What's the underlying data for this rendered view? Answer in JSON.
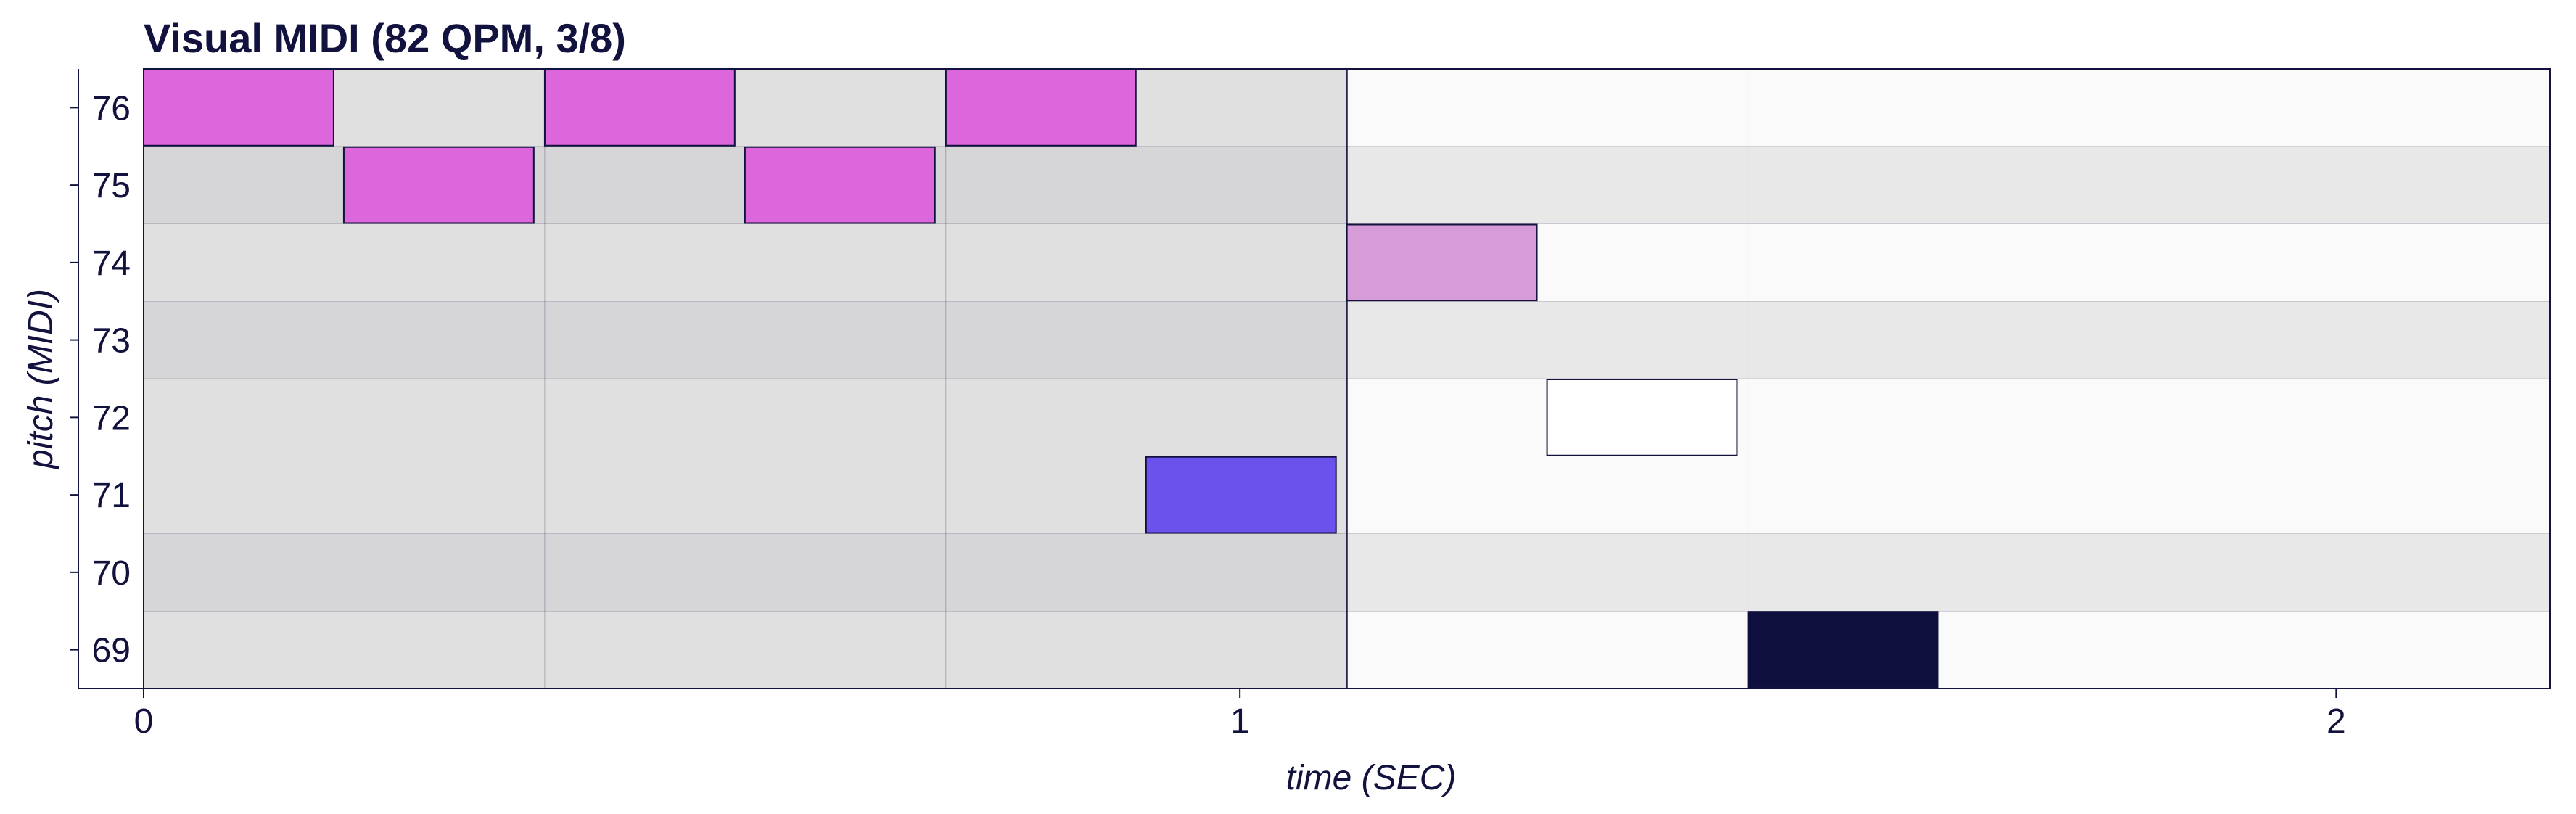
{
  "chart_data": {
    "type": "piano-roll",
    "title": "Visual MIDI (82 QPM, 3/8)",
    "xlabel": "time (SEC)",
    "ylabel": "pitch (MIDI)",
    "xlim": [
      0,
      2.195
    ],
    "ylim": [
      69,
      76
    ],
    "x_ticks": [
      "0",
      "1",
      "2"
    ],
    "y_ticks": [
      "69",
      "70",
      "71",
      "72",
      "73",
      "74",
      "75",
      "76"
    ],
    "beat_seconds": 0.3659,
    "measure_boundaries": [
      1.0976
    ],
    "grid": true,
    "notes": [
      {
        "pitch": 76,
        "start": 0.0,
        "end": 0.1733,
        "color": "#dc67dc"
      },
      {
        "pitch": 75,
        "start": 0.1826,
        "end": 0.3559,
        "color": "#dc67dc"
      },
      {
        "pitch": 76,
        "start": 0.3659,
        "end": 0.5392,
        "color": "#dc67dc"
      },
      {
        "pitch": 75,
        "start": 0.5485,
        "end": 0.7218,
        "color": "#dc67dc"
      },
      {
        "pitch": 76,
        "start": 0.7318,
        "end": 0.9051,
        "color": "#dc67dc"
      },
      {
        "pitch": 71,
        "start": 0.9144,
        "end": 1.0877,
        "color": "#6b52ec"
      },
      {
        "pitch": 74,
        "start": 1.0976,
        "end": 1.2709,
        "color": "#d79cd7"
      },
      {
        "pitch": 72,
        "start": 1.2802,
        "end": 1.4535,
        "color": "#ffffff"
      },
      {
        "pitch": 69,
        "start": 1.4635,
        "end": 1.6368,
        "color": "#0f0f3f"
      }
    ],
    "colors": {
      "text": "#12123f",
      "grid_line": "#12123f",
      "measure1_sharp_row": "#d6d5d8",
      "measure1_natural_row": "#e0e0e0",
      "measure2_sharp_row": "#e8e8e8",
      "measure2_natural_row": "#fafafa",
      "measure3_sharp_row": "#d9d9d9",
      "measure3_natural_row": "#f4f4f4"
    }
  }
}
